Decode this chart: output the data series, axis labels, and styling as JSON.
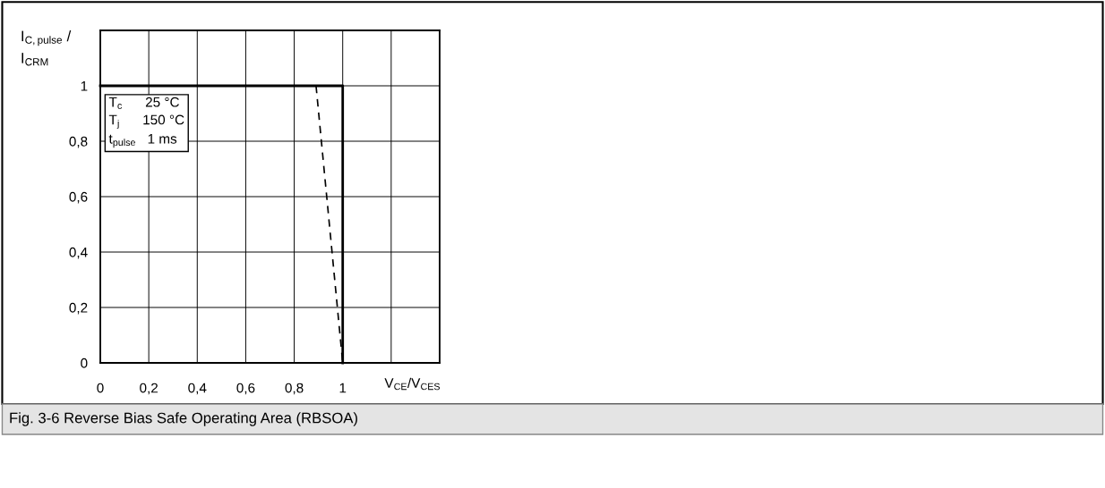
{
  "chart_data": {
    "type": "line",
    "xlabel": "V$_{CE}$/V$_{CES}$",
    "ylabel": "I$_{C,pulse}$ /\nI$_{CRM}$",
    "series": [
      {
        "x": [
          0,
          1,
          1
        ],
        "values": [
          1,
          1,
          0
        ],
        "color": "#000000",
        "line_style": "solid"
      },
      {
        "x": [
          0.89,
          1
        ],
        "values": [
          1,
          0
        ],
        "color": "#000000",
        "line_style": "dashed"
      }
    ],
    "xlim": [
      0,
      1.4
    ],
    "ylim": [
      0,
      1.2
    ],
    "xticks": [
      0,
      {
        "value": 0.2,
        "label": "0,2"
      },
      {
        "value": 0.4,
        "label": "0,4"
      },
      {
        "value": 0.6,
        "label": "0,6"
      },
      {
        "value": 0.8,
        "label": "0,8"
      },
      1,
      {
        "value": 1.2,
        "label": null
      },
      {
        "value": 1.4,
        "label": null
      }
    ],
    "yticks": [
      0,
      {
        "value": 0.2,
        "label": "0,2"
      },
      {
        "value": 0.4,
        "label": "0,4"
      },
      {
        "value": 0.6,
        "label": "0,6"
      },
      {
        "value": 0.8,
        "label": "0,8"
      },
      1,
      {
        "value": 1.2,
        "label": null
      }
    ],
    "grid": true,
    "legend": false,
    "marker": "none",
    "annotations": [
      "T$_{c}$      25 °C\nT$_{j}$      150 °C\nt$_{pulse}$   1 ms",
      "Fig. 3-6 Reverse Bias Safe Operating Area (RBSOA)"
    ]
  }
}
